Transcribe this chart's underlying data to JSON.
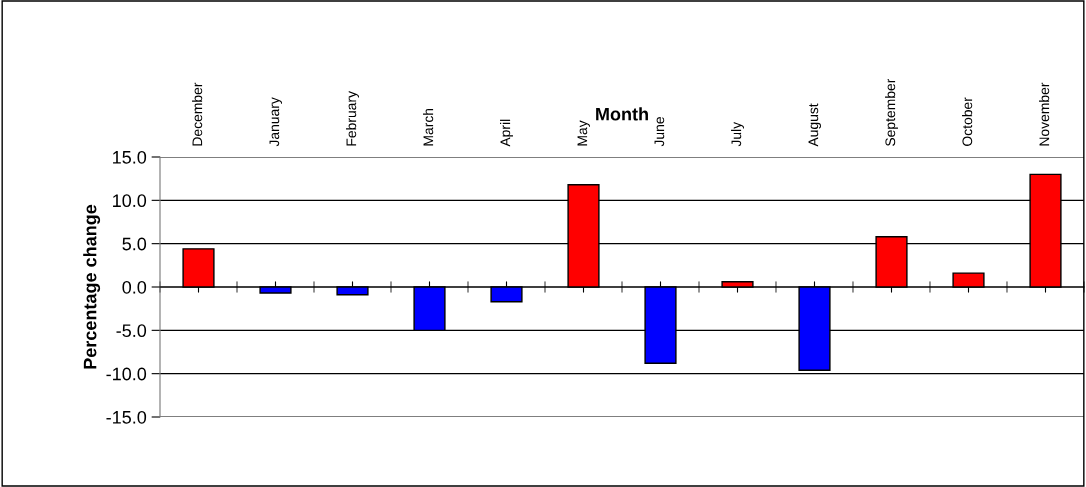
{
  "chart_data": {
    "type": "bar",
    "xlabel": "Month",
    "ylabel": "Percentage change",
    "categories": [
      "December",
      "January",
      "February",
      "March",
      "April",
      "May",
      "June",
      "July",
      "August",
      "September",
      "October",
      "November"
    ],
    "values": [
      4.4,
      -0.7,
      -0.9,
      -5.0,
      -1.7,
      11.8,
      -8.8,
      0.6,
      -9.6,
      5.8,
      1.6,
      13.0
    ],
    "colors": [
      "#ff0000",
      "#0000ff",
      "#0000ff",
      "#0000ff",
      "#0000ff",
      "#ff0000",
      "#0000ff",
      "#ff0000",
      "#0000ff",
      "#ff0000",
      "#ff0000",
      "#ff0000"
    ],
    "ylim": [
      -15,
      15
    ],
    "yticks": [
      {
        "value": -15,
        "label": "-15.0"
      },
      {
        "value": -10,
        "label": "-10.0"
      },
      {
        "value": -5,
        "label": "-5.0"
      },
      {
        "value": 0,
        "label": "0.0"
      },
      {
        "value": 5,
        "label": "5.0"
      },
      {
        "value": 10,
        "label": "10.0"
      },
      {
        "value": 15,
        "label": "15.0"
      }
    ],
    "grid": "y",
    "legend": false
  }
}
